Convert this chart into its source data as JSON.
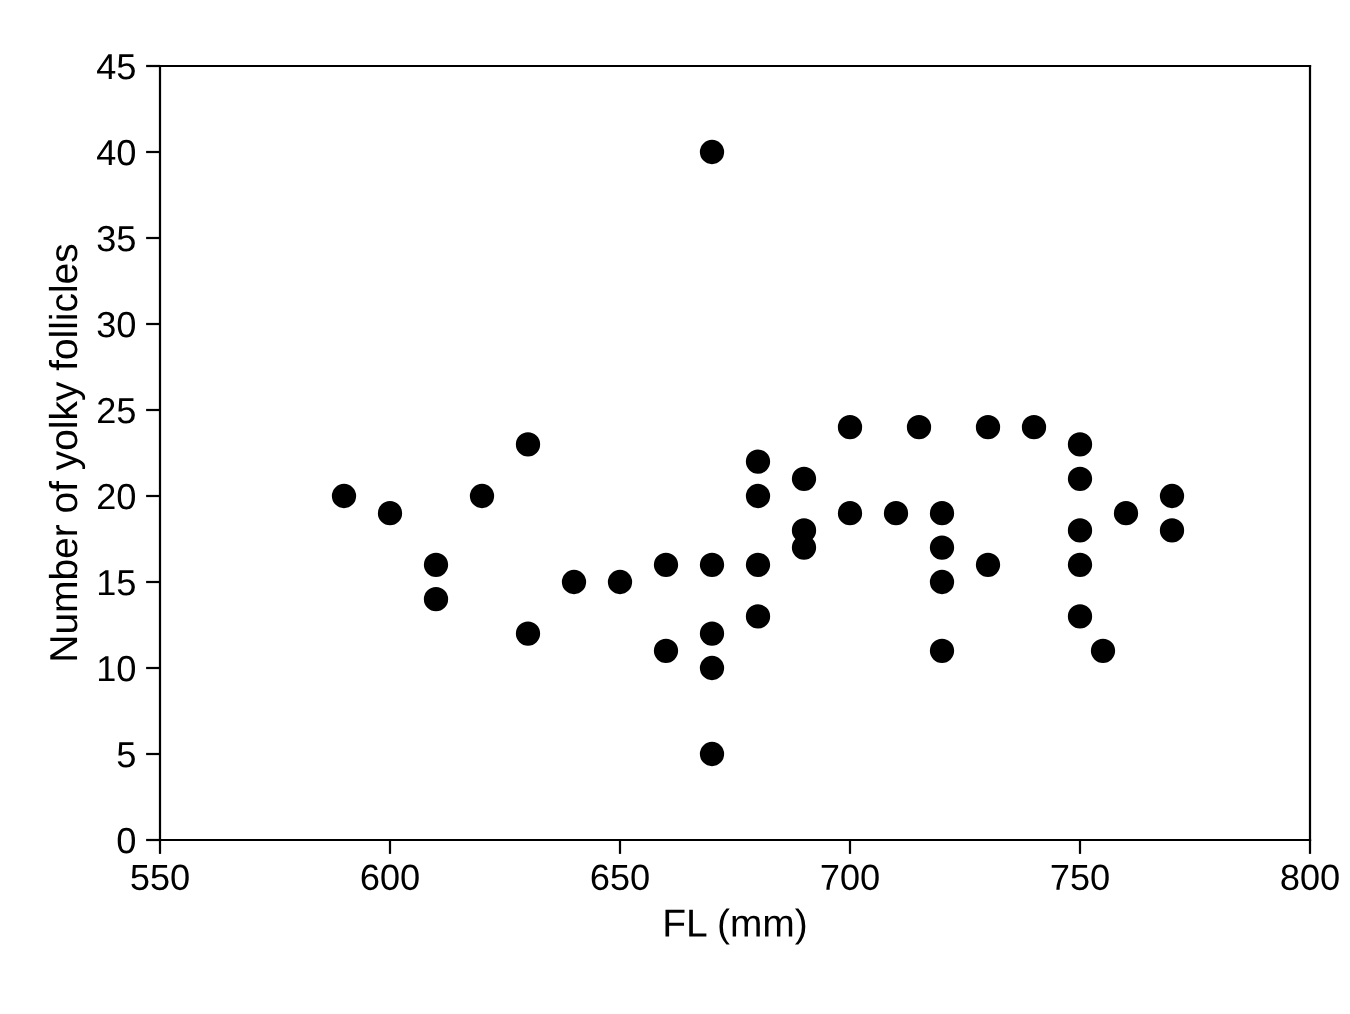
{
  "chart_data": {
    "type": "scatter",
    "xlabel": "FL (mm)",
    "ylabel": "Number of yolky follicles",
    "x": [
      590,
      600,
      610,
      610,
      620,
      630,
      630,
      640,
      650,
      660,
      660,
      670,
      670,
      670,
      670,
      670,
      680,
      680,
      680,
      680,
      690,
      690,
      690,
      700,
      700,
      710,
      715,
      720,
      720,
      720,
      720,
      730,
      730,
      740,
      750,
      750,
      750,
      750,
      750,
      755,
      760,
      770,
      770
    ],
    "values": [
      20,
      19,
      16,
      14,
      20,
      23,
      12,
      15,
      15,
      16,
      11,
      40,
      16,
      12,
      10,
      5,
      22,
      20,
      16,
      13,
      21,
      18,
      17,
      24,
      19,
      19,
      24,
      19,
      17,
      15,
      11,
      16,
      24,
      24,
      23,
      21,
      18,
      16,
      13,
      11,
      19,
      20,
      18
    ],
    "color": "#000000",
    "marker": "circle",
    "grid": false,
    "legend": false,
    "xlim": [
      550,
      800
    ],
    "xticks": [
      550,
      600,
      650,
      700,
      750,
      800
    ],
    "ylim": [
      0,
      45
    ],
    "yticks": [
      0,
      5,
      10,
      15,
      20,
      25,
      30,
      35,
      40,
      45
    ]
  }
}
